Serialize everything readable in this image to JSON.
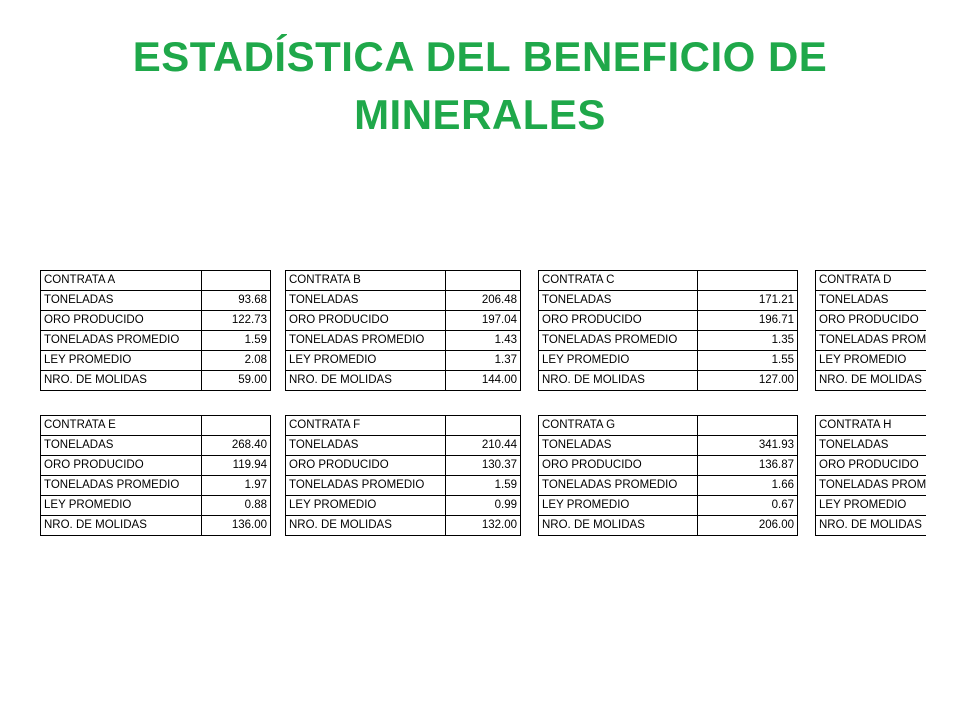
{
  "title_line1": "ESTADÍSTICA DEL BENEFICIO DE",
  "title_line2": "MINERALES",
  "contratas": [
    {
      "name": "CONTRATA A",
      "rows": [
        {
          "label": "TONELADAS",
          "value": "93.68"
        },
        {
          "label": "ORO PRODUCIDO",
          "value": "122.73"
        },
        {
          "label": "TONELADAS PROMEDIO",
          "value": "1.59"
        },
        {
          "label": "LEY PROMEDIO",
          "value": "2.08"
        },
        {
          "label": "NRO. DE MOLIDAS",
          "value": "59.00"
        }
      ]
    },
    {
      "name": "CONTRATA B",
      "rows": [
        {
          "label": "TONELADAS",
          "value": "206.48"
        },
        {
          "label": "ORO PRODUCIDO",
          "value": "197.04"
        },
        {
          "label": "TONELADAS PROMEDIO",
          "value": "1.43"
        },
        {
          "label": "LEY PROMEDIO",
          "value": "1.37"
        },
        {
          "label": "NRO. DE MOLIDAS",
          "value": "144.00"
        }
      ]
    },
    {
      "name": "CONTRATA C",
      "rows": [
        {
          "label": "TONELADAS",
          "value": "171.21"
        },
        {
          "label": "ORO PRODUCIDO",
          "value": "196.71"
        },
        {
          "label": "TONELADAS PROMEDIO",
          "value": "1.35"
        },
        {
          "label": "LEY PROMEDIO",
          "value": "1.55"
        },
        {
          "label": "NRO. DE MOLIDAS",
          "value": "127.00"
        }
      ]
    },
    {
      "name": "CONTRATA D",
      "rows": [
        {
          "label": "TONELADAS",
          "value": ""
        },
        {
          "label": "ORO PRODUCIDO",
          "value": ""
        },
        {
          "label": "TONELADAS PROMEDIO",
          "value": ""
        },
        {
          "label": "LEY PROMEDIO",
          "value": ""
        },
        {
          "label": "NRO. DE MOLIDAS",
          "value": ""
        }
      ]
    },
    {
      "name": "CONTRATA E",
      "rows": [
        {
          "label": "TONELADAS",
          "value": "268.40"
        },
        {
          "label": "ORO PRODUCIDO",
          "value": "119.94"
        },
        {
          "label": "TONELADAS PROMEDIO",
          "value": "1.97"
        },
        {
          "label": "LEY PROMEDIO",
          "value": "0.88"
        },
        {
          "label": "NRO. DE MOLIDAS",
          "value": "136.00"
        }
      ]
    },
    {
      "name": "CONTRATA F",
      "rows": [
        {
          "label": "TONELADAS",
          "value": "210.44"
        },
        {
          "label": "ORO PRODUCIDO",
          "value": "130.37"
        },
        {
          "label": "TONELADAS PROMEDIO",
          "value": "1.59"
        },
        {
          "label": "LEY PROMEDIO",
          "value": "0.99"
        },
        {
          "label": "NRO. DE MOLIDAS",
          "value": "132.00"
        }
      ]
    },
    {
      "name": "CONTRATA G",
      "rows": [
        {
          "label": "TONELADAS",
          "value": "341.93"
        },
        {
          "label": "ORO PRODUCIDO",
          "value": "136.87"
        },
        {
          "label": "TONELADAS PROMEDIO",
          "value": "1.66"
        },
        {
          "label": "LEY PROMEDIO",
          "value": "0.67"
        },
        {
          "label": "NRO. DE MOLIDAS",
          "value": "206.00"
        }
      ]
    },
    {
      "name": "CONTRATA H",
      "rows": [
        {
          "label": "TONELADAS",
          "value": ""
        },
        {
          "label": "ORO PRODUCIDO",
          "value": ""
        },
        {
          "label": "TONELADAS PROMEDIO",
          "value": ""
        },
        {
          "label": "LEY PROMEDIO",
          "value": ""
        },
        {
          "label": "NRO. DE MOLIDAS",
          "value": ""
        }
      ]
    }
  ]
}
